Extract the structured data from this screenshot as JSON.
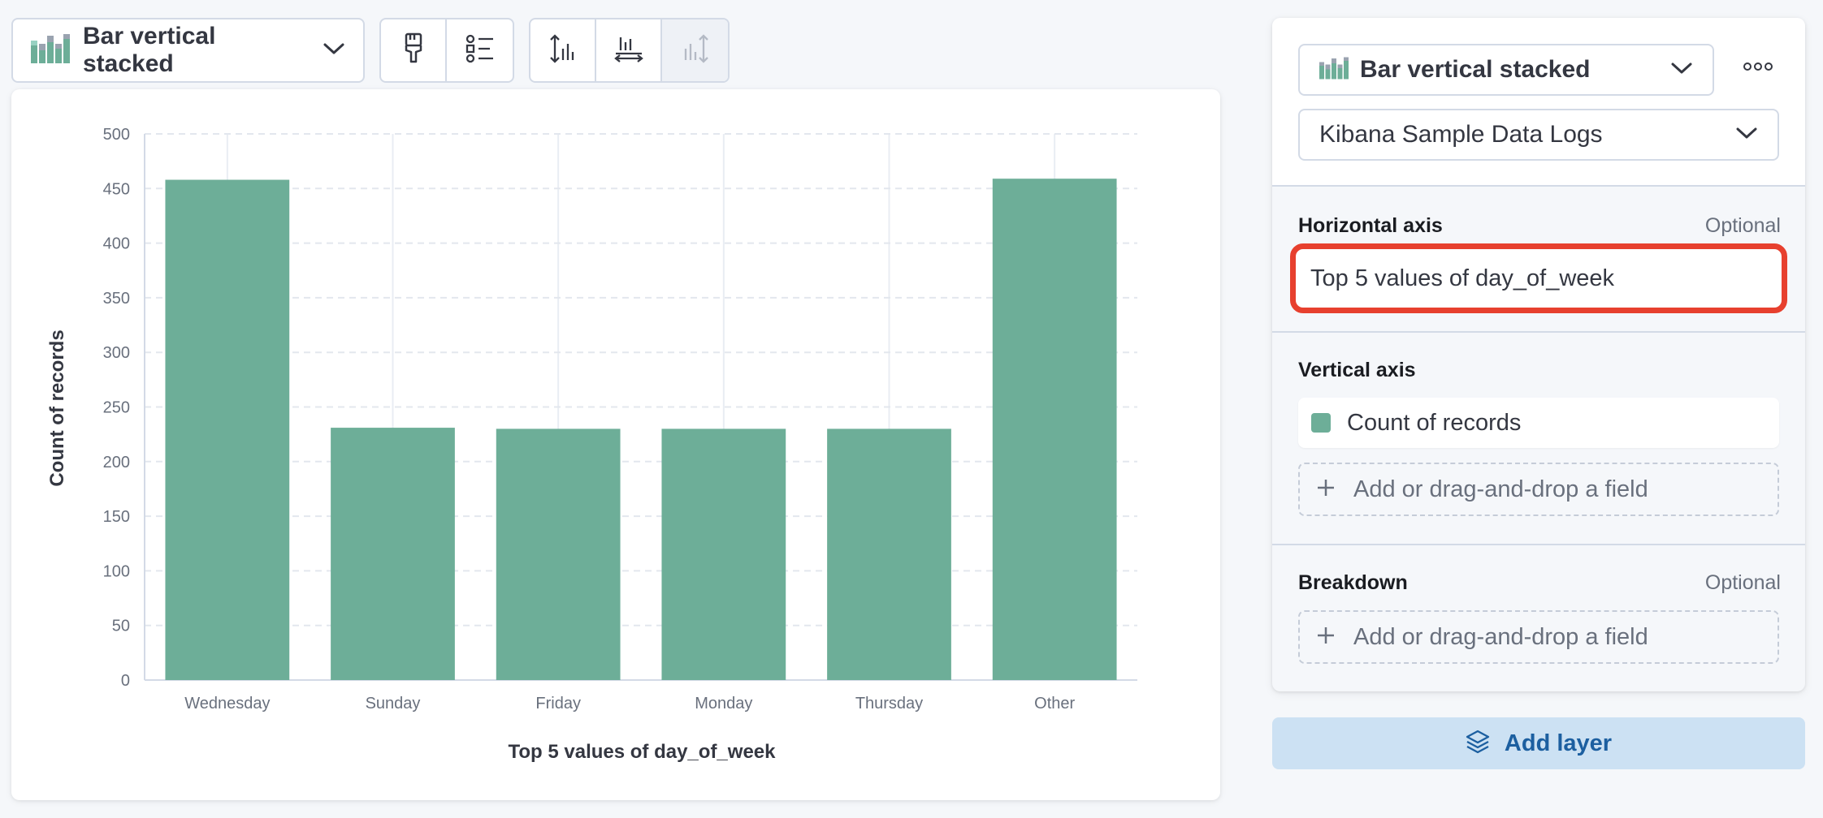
{
  "toolbar": {
    "chart_type_label": "Bar vertical stacked"
  },
  "config": {
    "chart_type_label": "Bar vertical stacked",
    "data_view_label": "Kibana Sample Data Logs",
    "horizontal_axis": {
      "title": "Horizontal axis",
      "optional": "Optional",
      "value": "Top 5 values of day_of_week"
    },
    "vertical_axis": {
      "title": "Vertical axis",
      "field": "Count of records",
      "dropzone": "Add or drag-and-drop a field"
    },
    "breakdown": {
      "title": "Breakdown",
      "optional": "Optional",
      "dropzone": "Add or drag-and-drop a field"
    },
    "add_layer_label": "Add layer"
  },
  "colors": {
    "bar": "#6dae98",
    "highlight": "#e7402e",
    "accent": "#1c5fa0"
  },
  "chart_data": {
    "type": "bar",
    "categories": [
      "Wednesday",
      "Sunday",
      "Friday",
      "Monday",
      "Thursday",
      "Other"
    ],
    "values": [
      458,
      231,
      230,
      230,
      230,
      459
    ],
    "xlabel": "Top 5 values of day_of_week",
    "ylabel": "Count of records",
    "ylim": [
      0,
      500
    ],
    "yticks": [
      0,
      50,
      100,
      150,
      200,
      250,
      300,
      350,
      400,
      450,
      500
    ],
    "grid": true,
    "legend": "none"
  }
}
